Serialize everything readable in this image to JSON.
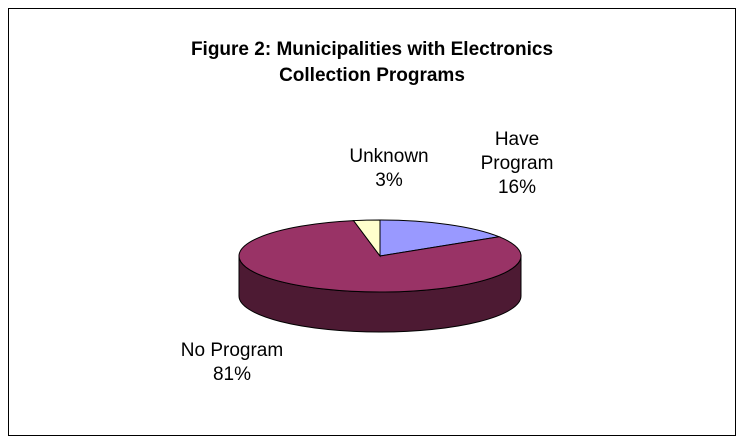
{
  "chart_data": {
    "type": "pie",
    "title": [
      "Figure 2: Municipalities with Electronics",
      "Collection Programs"
    ],
    "slices": [
      {
        "label_lines": [
          "Have",
          "Program"
        ],
        "pct_label": "16%",
        "value": 16,
        "color": "#9999FF",
        "side_color": "#4D4D80"
      },
      {
        "label_lines": [
          "No Program"
        ],
        "pct_label": "81%",
        "value": 81,
        "color": "#993366",
        "side_color": "#4D1A33"
      },
      {
        "label_lines": [
          "Unknown"
        ],
        "pct_label": "3%",
        "value": 3,
        "color": "#FFFFCC",
        "side_color": "#808066"
      }
    ],
    "three_d": true,
    "legend": "none"
  }
}
